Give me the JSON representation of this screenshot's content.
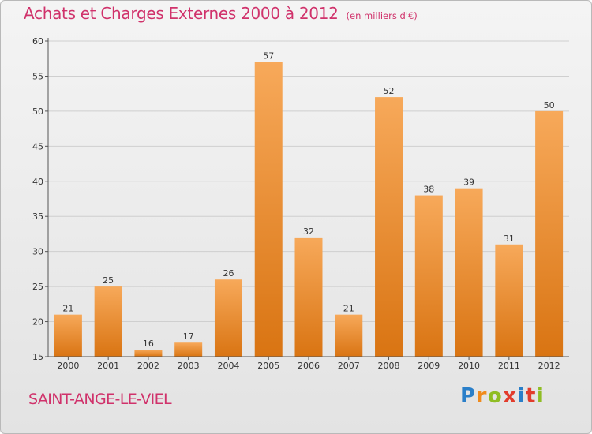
{
  "title": "Achats et Charges Externes 2000 à 2012",
  "subtitle": "(en milliers d'€)",
  "commune": "SAINT-ANGE-LE-VIEL",
  "brand": {
    "letters": [
      "P",
      "r",
      "o",
      "x",
      "i",
      "t",
      "i"
    ],
    "colors": [
      "#2a7fc9",
      "#f08a1c",
      "#8fbd24",
      "#e23c2c",
      "#2a7fc9",
      "#e23c2c",
      "#8fbd24"
    ]
  },
  "colors": {
    "title": "#d0326b",
    "bar_top": "#f7a95a",
    "bar_bottom": "#d97412",
    "grid": "#cfcfcf"
  },
  "chart_data": {
    "type": "bar",
    "title": "Achats et Charges Externes 2000 à 2012",
    "categories": [
      "2000",
      "2001",
      "2002",
      "2003",
      "2004",
      "2005",
      "2006",
      "2007",
      "2008",
      "2009",
      "2010",
      "2011",
      "2012"
    ],
    "values": [
      21,
      25,
      16,
      17,
      26,
      57,
      32,
      21,
      52,
      38,
      39,
      31,
      50
    ],
    "ylim": [
      15,
      60
    ],
    "yticks": [
      15,
      20,
      25,
      30,
      35,
      40,
      45,
      50,
      55,
      60
    ],
    "grid": true,
    "data_labels": true
  }
}
